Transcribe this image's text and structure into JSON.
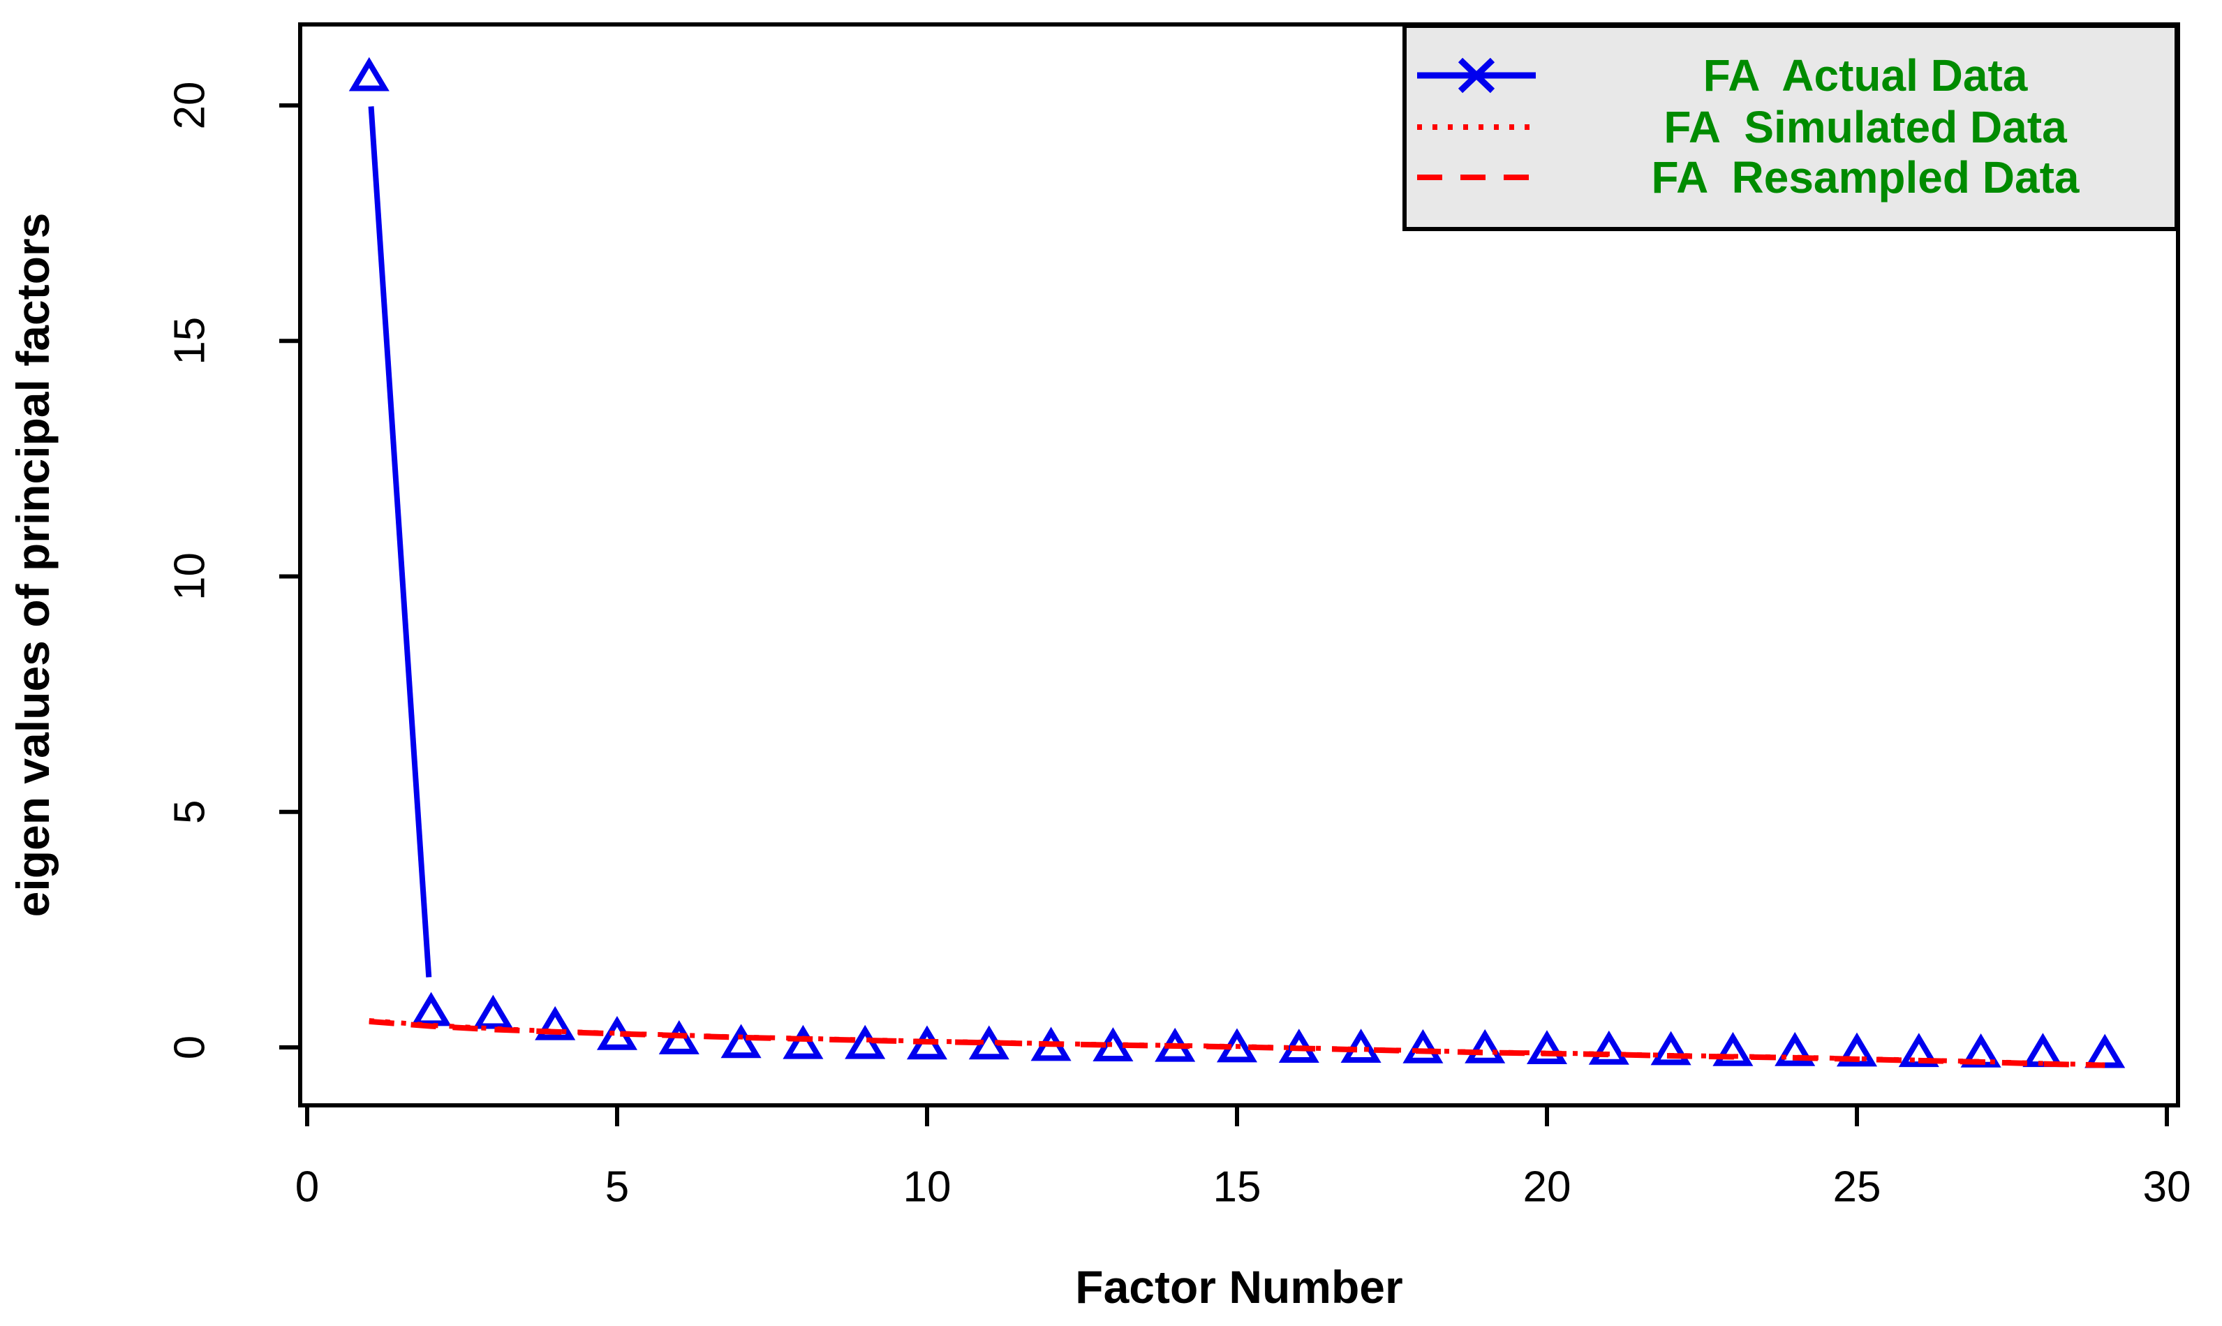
{
  "figure": {
    "kind": "scree-plot",
    "background": "#ffffff"
  },
  "chart_data": {
    "type": "line",
    "title": "",
    "xlabel": "Factor Number",
    "ylabel": "eigen values of principal factors",
    "x": [
      1,
      2,
      3,
      4,
      5,
      6,
      7,
      8,
      9,
      10,
      11,
      12,
      13,
      14,
      15,
      16,
      17,
      18,
      19,
      20,
      21,
      22,
      23,
      24,
      25,
      26,
      27,
      28,
      29
    ],
    "series": [
      {
        "name": "FA  Actual Data",
        "style": "solid-line-with-triangle-markers",
        "color": "#0000ee",
        "values": [
          20.6,
          0.75,
          0.69,
          0.45,
          0.24,
          0.15,
          0.07,
          0.05,
          0.05,
          0.04,
          0.04,
          0.01,
          0.0,
          -0.01,
          -0.02,
          -0.03,
          -0.03,
          -0.04,
          -0.04,
          -0.06,
          -0.07,
          -0.08,
          -0.1,
          -0.1,
          -0.11,
          -0.12,
          -0.13,
          -0.12,
          -0.14
        ]
      },
      {
        "name": "FA  Simulated Data",
        "style": "dotted",
        "color": "#ff0000",
        "values": [
          0.57,
          0.47,
          0.4,
          0.34,
          0.3,
          0.26,
          0.22,
          0.19,
          0.16,
          0.13,
          0.11,
          0.08,
          0.06,
          0.04,
          0.02,
          -0.01,
          -0.04,
          -0.07,
          -0.1,
          -0.12,
          -0.14,
          -0.17,
          -0.19,
          -0.21,
          -0.24,
          -0.27,
          -0.3,
          -0.34,
          -0.37
        ]
      },
      {
        "name": "FA  Resampled Data",
        "style": "dashed",
        "color": "#ff0000",
        "values": [
          0.55,
          0.45,
          0.38,
          0.33,
          0.29,
          0.25,
          0.21,
          0.18,
          0.15,
          0.12,
          0.1,
          0.07,
          0.05,
          0.03,
          0.01,
          -0.02,
          -0.05,
          -0.08,
          -0.11,
          -0.13,
          -0.15,
          -0.18,
          -0.2,
          -0.22,
          -0.25,
          -0.28,
          -0.31,
          -0.35,
          -0.38
        ]
      }
    ],
    "x_ticks": [
      0,
      5,
      10,
      15,
      20,
      25,
      30
    ],
    "y_ticks": [
      0,
      5,
      10,
      15,
      20
    ],
    "xlim": [
      0,
      30
    ],
    "ylim": [
      -1.2,
      21.3
    ],
    "grid": false,
    "legend_position": "topright"
  },
  "legend": {
    "background": "#e8e8e8",
    "border_color": "#000000",
    "text_color": "#008b00",
    "items": [
      {
        "label": "FA  Actual Data",
        "sample": "blue-solid-line-with-x-marker",
        "color": "#0000ee"
      },
      {
        "label": "FA  Simulated Data",
        "sample": "red-dotted-line",
        "color": "#ff0000"
      },
      {
        "label": "FA  Resampled Data",
        "sample": "red-dashed-line",
        "color": "#ff0000"
      }
    ]
  },
  "colors": {
    "actual_blue": "#0000ee",
    "simulated_red": "#ff0000",
    "resampled_red": "#ff0000",
    "axis_black": "#000000",
    "legend_text_green": "#008b00",
    "legend_background": "#e8e8e8"
  }
}
